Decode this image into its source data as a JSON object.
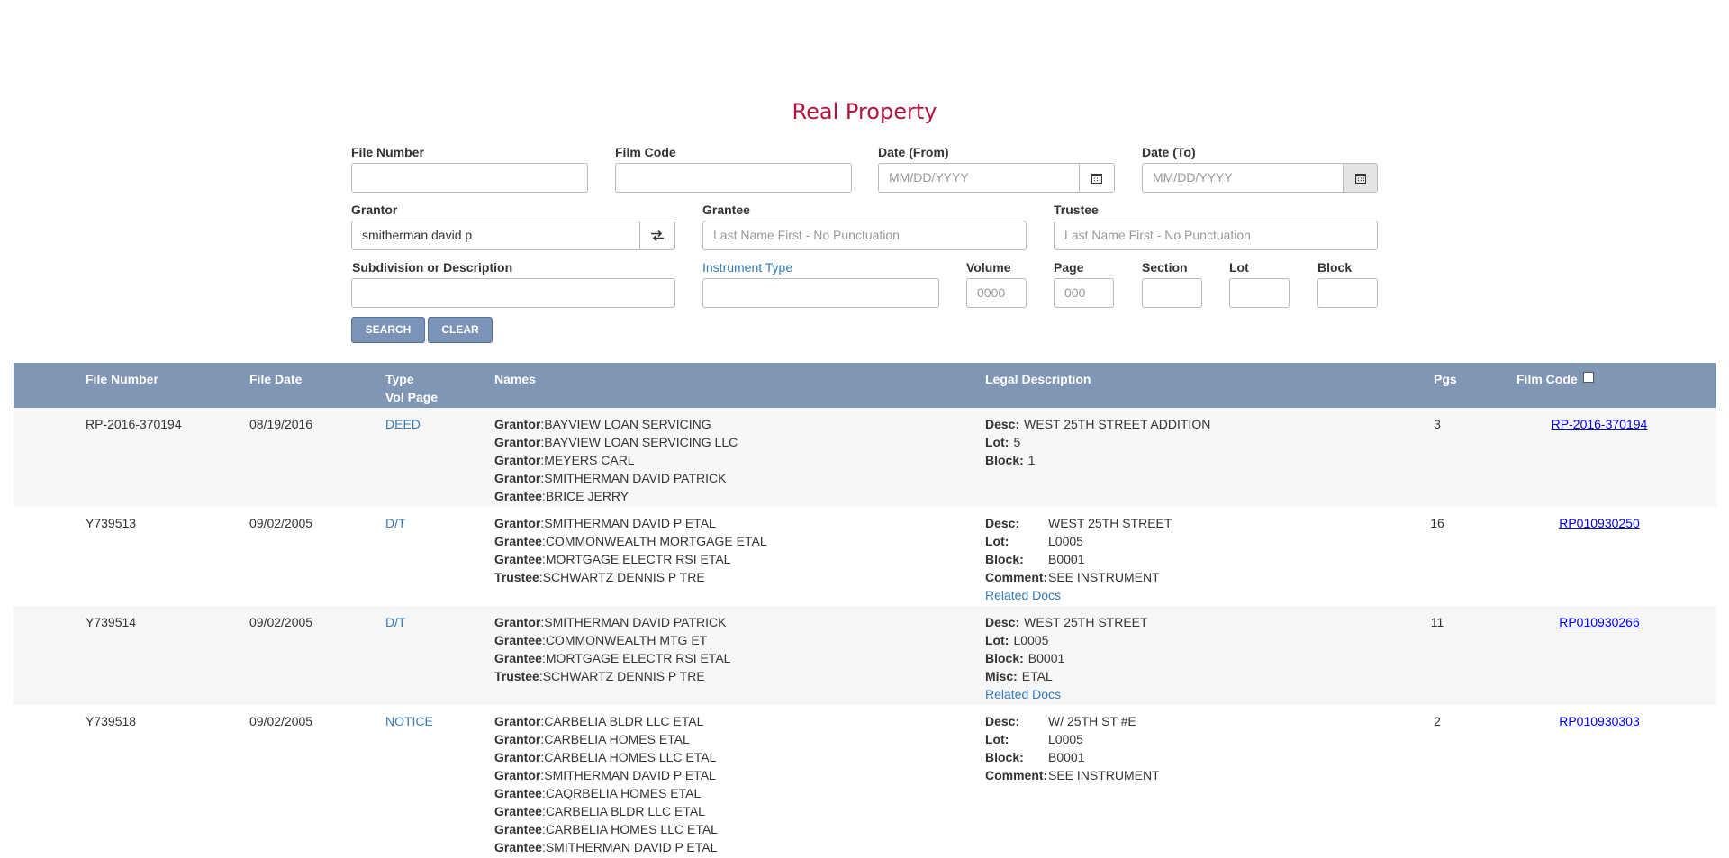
{
  "page_title": "Real Property",
  "form": {
    "file_number": {
      "label": "File Number",
      "value": ""
    },
    "film_code": {
      "label": "Film Code",
      "value": ""
    },
    "date_from": {
      "label": "Date (From)",
      "placeholder": "MM/DD/YYYY"
    },
    "date_to": {
      "label": "Date (To)",
      "placeholder": "MM/DD/YYYY"
    },
    "grantor": {
      "label": "Grantor",
      "value": "smitherman david p"
    },
    "grantee": {
      "label": "Grantee",
      "placeholder": "Last Name First - No Punctuation"
    },
    "trustee": {
      "label": "Trustee",
      "placeholder": "Last Name First - No Punctuation"
    },
    "subdivision": {
      "label": "Subdivision or Description",
      "value": ""
    },
    "instrument_type": {
      "label": "Instrument Type",
      "value": ""
    },
    "volume": {
      "label": "Volume",
      "placeholder": "0000"
    },
    "page": {
      "label": "Page",
      "placeholder": "000"
    },
    "section": {
      "label": "Section",
      "value": ""
    },
    "lot": {
      "label": "Lot",
      "value": ""
    },
    "block": {
      "label": "Block",
      "value": ""
    },
    "search_label": "SEARCH",
    "clear_label": "CLEAR"
  },
  "table": {
    "headers": {
      "file_number": "File Number",
      "file_date": "File Date",
      "type": "Type",
      "vol_page": "Vol Page",
      "names": "Names",
      "legal": "Legal Description",
      "pgs": "Pgs",
      "film_code": "Film Code"
    },
    "rows": [
      {
        "file_number": "RP-2016-370194",
        "file_date": "08/19/2016",
        "type": "DEED",
        "names": [
          {
            "role": "Grantor",
            "name": "BAYVIEW LOAN SERVICING"
          },
          {
            "role": "Grantor",
            "name": "BAYVIEW LOAN SERVICING LLC"
          },
          {
            "role": "Grantor",
            "name": "MEYERS CARL"
          },
          {
            "role": "Grantor",
            "name": "SMITHERMAN DAVID PATRICK"
          },
          {
            "role": "Grantee",
            "name": "BRICE JERRY"
          }
        ],
        "legal": [
          {
            "key": "Desc:",
            "val": "WEST 25TH STREET ADDITION"
          },
          {
            "key": "Lot:",
            "val": "5"
          },
          {
            "key": "Block:",
            "val": "1"
          }
        ],
        "related": "",
        "pgs": "3",
        "film_code": "RP-2016-370194"
      },
      {
        "file_number": "Y739513",
        "file_date": "09/02/2005",
        "type": "D/T",
        "names": [
          {
            "role": "Grantor",
            "name": "SMITHERMAN DAVID P ETAL"
          },
          {
            "role": "Grantee",
            "name": "COMMONWEALTH MORTGAGE ETAL"
          },
          {
            "role": "Grantee",
            "name": "MORTGAGE ELECTR RSI ETAL"
          },
          {
            "role": "Trustee",
            "name": "SCHWARTZ DENNIS P TRE"
          }
        ],
        "legal": [
          {
            "key": "Desc:",
            "val": "WEST 25TH STREET"
          },
          {
            "key": "Lot:",
            "val": "L0005"
          },
          {
            "key": "Block:",
            "val": "B0001"
          },
          {
            "key": "Comment:",
            "val": "SEE INSTRUMENT"
          }
        ],
        "related": "Related Docs",
        "pgs": "16",
        "film_code": "RP010930250"
      },
      {
        "file_number": "Y739514",
        "file_date": "09/02/2005",
        "type": "D/T",
        "names": [
          {
            "role": "Grantor",
            "name": "SMITHERMAN DAVID PATRICK"
          },
          {
            "role": "Grantee",
            "name": "COMMONWEALTH MTG ET"
          },
          {
            "role": "Grantee",
            "name": "MORTGAGE ELECTR RSI ETAL"
          },
          {
            "role": "Trustee",
            "name": "SCHWARTZ DENNIS P TRE"
          }
        ],
        "legal": [
          {
            "key": "Desc:",
            "val": "WEST 25TH STREET"
          },
          {
            "key": "Lot:",
            "val": "L0005"
          },
          {
            "key": "Block:",
            "val": "B0001"
          },
          {
            "key": "Misc:",
            "val": "ETAL"
          }
        ],
        "related": "Related Docs",
        "pgs": "11",
        "film_code": "RP010930266"
      },
      {
        "file_number": "Y739518",
        "file_date": "09/02/2005",
        "type": "NOTICE",
        "names": [
          {
            "role": "Grantor",
            "name": "CARBELIA BLDR LLC ETAL"
          },
          {
            "role": "Grantor",
            "name": "CARBELIA HOMES ETAL"
          },
          {
            "role": "Grantor",
            "name": "CARBELIA HOMES LLC ETAL"
          },
          {
            "role": "Grantor",
            "name": "SMITHERMAN DAVID P ETAL"
          },
          {
            "role": "Grantee",
            "name": "CAQRBELIA HOMES ETAL"
          },
          {
            "role": "Grantee",
            "name": "CARBELIA BLDR LLC ETAL"
          },
          {
            "role": "Grantee",
            "name": "CARBELIA HOMES LLC ETAL"
          },
          {
            "role": "Grantee",
            "name": "SMITHERMAN DAVID P ETAL"
          }
        ],
        "legal": [
          {
            "key": "Desc:",
            "val": "W/ 25TH ST #E"
          },
          {
            "key": "Lot:",
            "val": "L0005"
          },
          {
            "key": "Block:",
            "val": "B0001"
          },
          {
            "key": "Comment:",
            "val": "SEE INSTRUMENT"
          }
        ],
        "related": "",
        "pgs": "2",
        "film_code": "RP010930303"
      }
    ]
  }
}
